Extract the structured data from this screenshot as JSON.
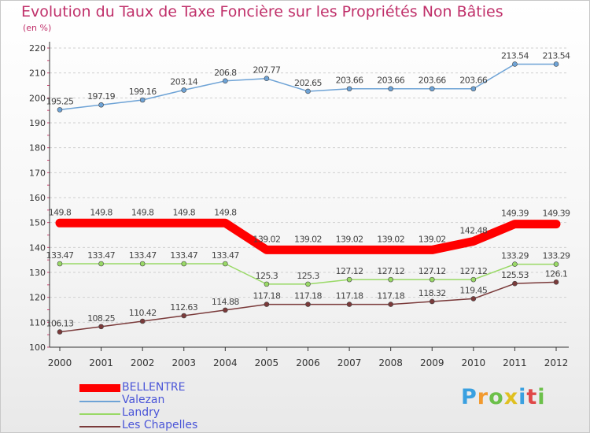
{
  "chart_data": {
    "type": "line",
    "title": "Evolution du Taux de Taxe Foncière sur les Propriétés Non Bâties",
    "subtitle": "(en %)",
    "xlabel": "",
    "ylabel": "",
    "ylim": [
      100,
      220
    ],
    "yticks": [
      "100",
      "110",
      "120",
      "130",
      "140",
      "150",
      "160",
      "170",
      "180",
      "190",
      "200",
      "210",
      "220"
    ],
    "categories": [
      "2000",
      "2001",
      "2002",
      "2003",
      "2004",
      "2005",
      "2006",
      "2007",
      "2008",
      "2009",
      "2010",
      "2011",
      "2012"
    ],
    "series": [
      {
        "name": "BELLENTRE",
        "color": "#ff0000",
        "values": [
          149.8,
          149.8,
          149.8,
          149.8,
          149.8,
          139.02,
          139.02,
          139.02,
          139.02,
          139.02,
          142.48,
          149.39,
          149.39
        ],
        "labels": [
          "149.8",
          "149.8",
          "149.8",
          "149.8",
          "149.8",
          "139.02",
          "139.02",
          "139.02",
          "139.02",
          "139.02",
          "142.48",
          "149.39",
          "149.39"
        ]
      },
      {
        "name": "Valezan",
        "color": "#6ea3d6",
        "values": [
          195.25,
          197.19,
          199.16,
          203.14,
          206.8,
          207.77,
          202.65,
          203.66,
          203.66,
          203.66,
          203.66,
          213.54,
          213.54
        ],
        "labels": [
          "195.25",
          "197.19",
          "199.16",
          "203.14",
          "206.8",
          "207.77",
          "202.65",
          "203.66",
          "203.66",
          "203.66",
          "203.66",
          "213.54",
          "213.54"
        ]
      },
      {
        "name": "Landry",
        "color": "#99d966",
        "values": [
          133.47,
          133.47,
          133.47,
          133.47,
          133.47,
          125.3,
          125.3,
          127.12,
          127.12,
          127.12,
          127.12,
          133.29,
          133.29
        ],
        "labels": [
          "133.47",
          "133.47",
          "133.47",
          "133.47",
          "133.47",
          "125.3",
          "125.3",
          "127.12",
          "127.12",
          "127.12",
          "127.12",
          "133.29",
          "133.29"
        ]
      },
      {
        "name": "Les Chapelles",
        "color": "#7a3a3a",
        "values": [
          106.13,
          108.25,
          110.42,
          112.63,
          114.88,
          117.18,
          117.18,
          117.18,
          117.18,
          118.32,
          119.45,
          125.53,
          126.1
        ],
        "labels": [
          "106.13",
          "108.25",
          "110.42",
          "112.63",
          "114.88",
          "117.18",
          "117.18",
          "117.18",
          "117.18",
          "118.32",
          "119.45",
          "125.53",
          "126.1"
        ]
      }
    ],
    "legend": "bottom-left"
  },
  "logo": {
    "letters": [
      "P",
      "r",
      "o",
      "x",
      "i",
      "t",
      "i"
    ],
    "colors": [
      "#3aa0e0",
      "#f29a2e",
      "#6cc04a",
      "#e0c020",
      "#3aa0e0",
      "#e04848",
      "#6cc04a"
    ]
  }
}
